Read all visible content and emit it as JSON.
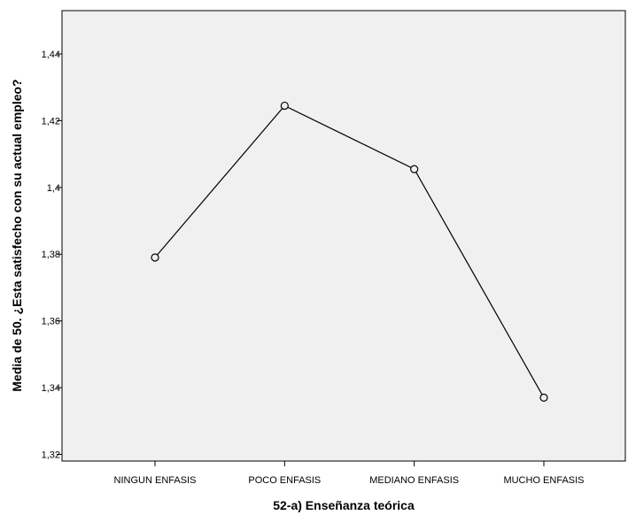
{
  "chart_data": {
    "type": "line",
    "categories": [
      "NINGUN ENFASIS",
      "POCO ENFASIS",
      "MEDIANO ENFASIS",
      "MUCHO ENFASIS"
    ],
    "values": [
      1.379,
      1.4245,
      1.4055,
      1.337
    ],
    "xlabel": "52-a) Enseñanza teórica",
    "ylabel": "Media de 50. ¿Esta satisfecho con su actual empleo?",
    "yticks": [
      1.32,
      1.34,
      1.36,
      1.38,
      1.4,
      1.42,
      1.44
    ],
    "ytick_labels": [
      "1,32",
      "1,34",
      "1,36",
      "1,38",
      "1,4",
      "1,42",
      "1,44"
    ],
    "ylim": [
      1.318,
      1.453
    ],
    "grid": false,
    "marker": "circle",
    "colors": {
      "line": "#000000",
      "plot_background": "#f0f0f0",
      "frame": "#000000"
    }
  }
}
